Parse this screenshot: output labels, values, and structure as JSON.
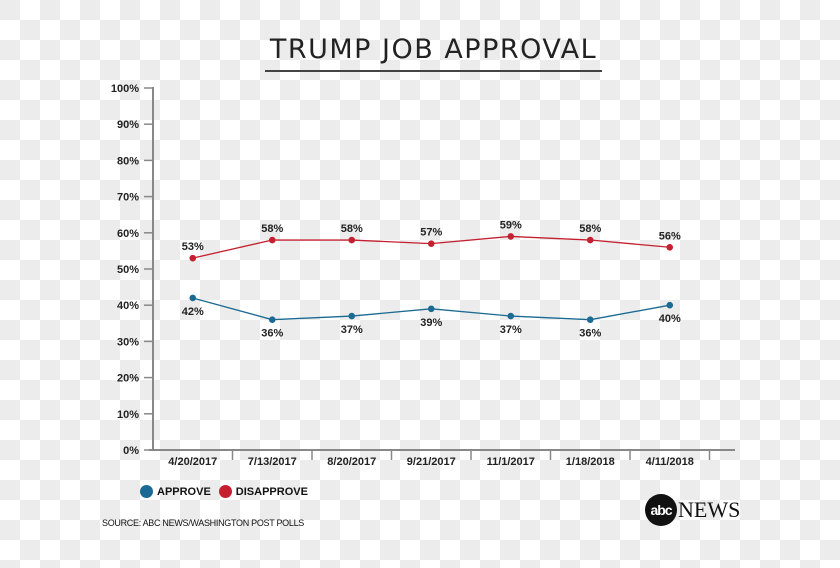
{
  "chart_data": {
    "type": "line",
    "title": "TRUMP JOB APPROVAL",
    "categories": [
      "4/20/2017",
      "7/13/2017",
      "8/20/2017",
      "9/21/2017",
      "11/1/2017",
      "1/18/2018",
      "4/11/2018"
    ],
    "ylim": [
      0,
      100
    ],
    "yticks": [
      "0%",
      "10%",
      "20%",
      "30%",
      "40%",
      "50%",
      "60%",
      "70%",
      "80%",
      "90%",
      "100%"
    ],
    "grid": false,
    "legend_position": "bottom-left",
    "series": [
      {
        "name": "APPROVE",
        "color": "#1a6a93",
        "values": [
          42,
          36,
          37,
          39,
          37,
          36,
          40
        ],
        "labels": [
          "42%",
          "36%",
          "37%",
          "39%",
          "37%",
          "36%",
          "40%"
        ]
      },
      {
        "name": "DISAPPROVE",
        "color": "#c4202f",
        "values": [
          53,
          58,
          58,
          57,
          59,
          58,
          56
        ],
        "labels": [
          "53%",
          "58%",
          "58%",
          "57%",
          "59%",
          "58%",
          "56%"
        ]
      }
    ]
  },
  "source": "SOURCE: ABC NEWS/WASHINGTON POST POLLS",
  "logo": {
    "ball": "abc",
    "text": "NEWS"
  }
}
